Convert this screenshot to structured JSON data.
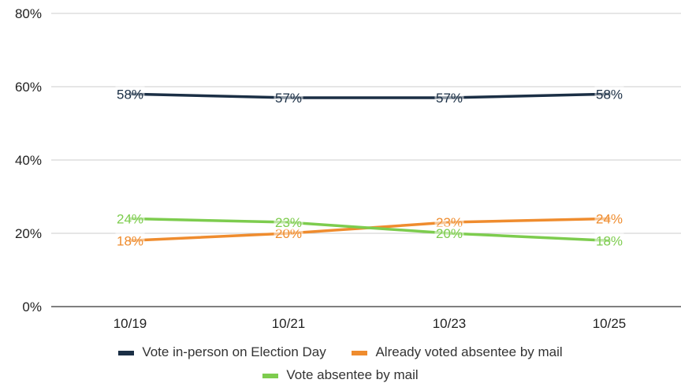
{
  "chart_data": {
    "type": "line",
    "categories": [
      "10/19",
      "10/21",
      "10/23",
      "10/25"
    ],
    "ylim": [
      0,
      80
    ],
    "yticks": [
      0,
      20,
      40,
      60,
      80
    ],
    "ytick_labels": [
      "0%",
      "20%",
      "40%",
      "60%",
      "80%"
    ],
    "grid": true,
    "legend_position": "bottom",
    "series": [
      {
        "name": "Vote in-person on Election Day",
        "color": "#1b2f45",
        "values": [
          58,
          57,
          57,
          58
        ],
        "labels": [
          "58%",
          "57%",
          "57%",
          "58%"
        ]
      },
      {
        "name": "Already voted absentee by mail",
        "color": "#ef8c2e",
        "values": [
          18,
          20,
          23,
          24
        ],
        "labels": [
          "18%",
          "20%",
          "23%",
          "24%"
        ]
      },
      {
        "name": "Vote absentee by mail",
        "color": "#7dcc4e",
        "values": [
          24,
          23,
          20,
          18
        ],
        "labels": [
          "24%",
          "23%",
          "20%",
          "18%"
        ]
      }
    ]
  }
}
